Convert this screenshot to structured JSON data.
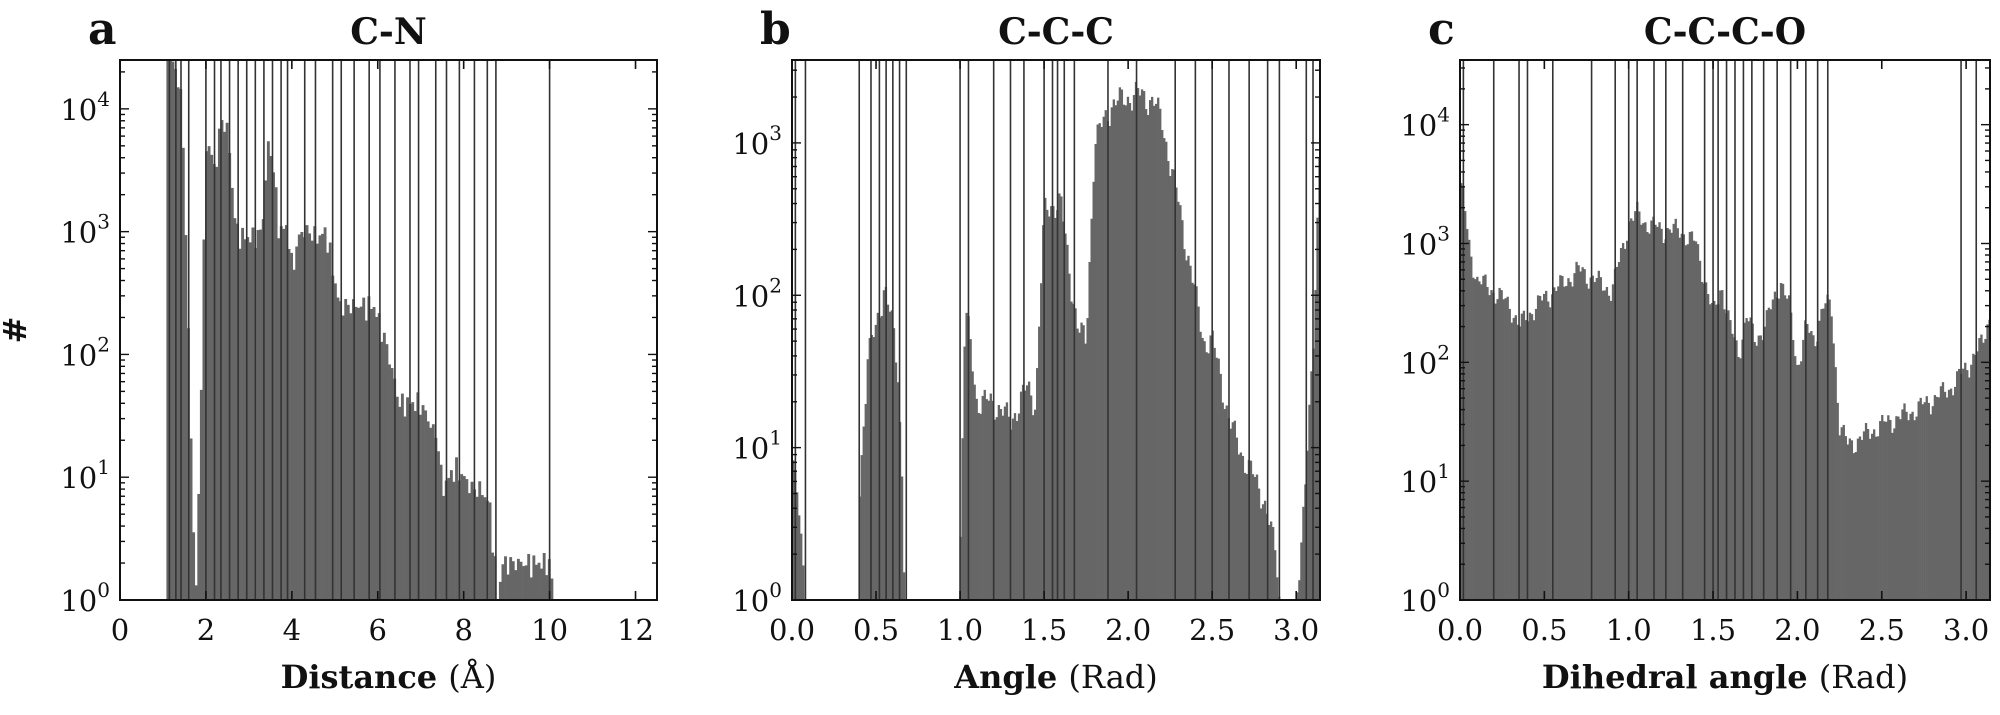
{
  "chart_data": [
    {
      "type": "bar",
      "panel": "a",
      "title": "C-N",
      "xlabel": "Distance",
      "xunit": "(Å)",
      "ylabel": "#",
      "yscale": "log",
      "xlim": [
        0,
        12.5
      ],
      "ylim": [
        1,
        25000
      ],
      "xticks": [
        0,
        2,
        4,
        6,
        8,
        10,
        12
      ],
      "xtick_labels": [
        "0",
        "2",
        "4",
        "6",
        "8",
        "10",
        "12"
      ],
      "yticks": [
        1,
        10,
        100,
        1000,
        10000
      ],
      "ytick_labels": [
        {
          "base": "10",
          "exp": "0"
        },
        {
          "base": "10",
          "exp": "1"
        },
        {
          "base": "10",
          "exp": "2"
        },
        {
          "base": "10",
          "exp": "3"
        },
        {
          "base": "10",
          "exp": "4"
        }
      ],
      "bin_width": 0.06,
      "profile_x": [
        1.1,
        1.2,
        1.3,
        1.4,
        1.5,
        1.6,
        1.7,
        1.75,
        1.8,
        2.0,
        2.1,
        2.2,
        2.35,
        2.5,
        2.7,
        2.9,
        3.1,
        3.3,
        3.45,
        3.55,
        3.7,
        3.9,
        4.0,
        4.2,
        4.4,
        4.6,
        4.8,
        5.1,
        5.3,
        5.6,
        5.9,
        6.0,
        6.2,
        6.5,
        6.8,
        7.0,
        7.4,
        7.5,
        7.8,
        8.0,
        8.2,
        8.4,
        8.6,
        8.8,
        8.9,
        9.2,
        9.6,
        10.0,
        10.1
      ],
      "profile_y": [
        30000,
        25000,
        20000,
        15000,
        3000,
        100,
        5,
        1,
        2,
        5000,
        5000,
        3000,
        8000,
        7000,
        1000,
        900,
        900,
        1000,
        5000,
        4000,
        1000,
        1100,
        500,
        1000,
        1000,
        900,
        1000,
        250,
        250,
        250,
        250,
        200,
        120,
        40,
        40,
        40,
        20,
        8,
        12,
        10,
        8,
        8,
        6,
        1,
        2,
        2,
        2,
        2,
        1
      ],
      "vlines": [
        1.15,
        1.3,
        1.42,
        1.6,
        2.0,
        2.2,
        2.35,
        2.55,
        2.75,
        2.95,
        3.15,
        3.35,
        3.55,
        3.75,
        3.9,
        4.3,
        4.55,
        4.95,
        5.15,
        5.45,
        5.8,
        6.05,
        6.4,
        6.75,
        6.95,
        7.35,
        7.6,
        7.9,
        8.25,
        8.55,
        8.75,
        10.0
      ]
    },
    {
      "type": "bar",
      "panel": "b",
      "title": "C-C-C",
      "xlabel": "Angle",
      "xunit": "(Rad)",
      "yscale": "log",
      "xlim": [
        0,
        3.14159
      ],
      "ylim": [
        1,
        3500
      ],
      "xticks": [
        0.0,
        0.5,
        1.0,
        1.5,
        2.0,
        2.5,
        3.0
      ],
      "xtick_labels": [
        "0.0",
        "0.5",
        "1.0",
        "1.5",
        "2.0",
        "2.5",
        "3.0"
      ],
      "yticks": [
        1,
        10,
        100,
        1000
      ],
      "ytick_labels": [
        {
          "base": "10",
          "exp": "0"
        },
        {
          "base": "10",
          "exp": "1"
        },
        {
          "base": "10",
          "exp": "2"
        },
        {
          "base": "10",
          "exp": "3"
        }
      ],
      "bin_width": 0.012,
      "profile_x": [
        0.0,
        0.03,
        0.06,
        0.09,
        0.1,
        0.39,
        0.4,
        0.45,
        0.5,
        0.55,
        0.6,
        0.63,
        0.66,
        0.67,
        0.99,
        1.0,
        1.03,
        1.06,
        1.1,
        1.2,
        1.3,
        1.4,
        1.45,
        1.5,
        1.55,
        1.6,
        1.65,
        1.7,
        1.75,
        1.8,
        1.9,
        2.0,
        2.05,
        2.1,
        2.15,
        2.2,
        2.3,
        2.4,
        2.45,
        2.5,
        2.55,
        2.6,
        2.7,
        2.8,
        2.88,
        2.9,
        2.95,
        3.0,
        3.05,
        3.1,
        3.14
      ],
      "profile_y": [
        8,
        5,
        2,
        1,
        1,
        1,
        5,
        40,
        60,
        120,
        60,
        30,
        5,
        1,
        1,
        2,
        80,
        50,
        20,
        20,
        15,
        25,
        20,
        350,
        400,
        400,
        150,
        60,
        50,
        1000,
        1800,
        2000,
        2100,
        2000,
        1900,
        1400,
        400,
        100,
        50,
        50,
        30,
        15,
        8,
        5,
        2,
        1,
        1,
        1,
        5,
        40,
        1000
      ],
      "vlines": [
        0.02,
        0.08,
        0.4,
        0.47,
        0.52,
        0.56,
        0.6,
        0.64,
        0.68,
        1.0,
        1.05,
        1.2,
        1.3,
        1.38,
        1.5,
        1.55,
        1.58,
        1.62,
        1.68,
        1.88,
        2.05,
        2.28,
        2.4,
        2.5,
        2.6,
        2.72,
        2.83,
        2.9,
        3.06,
        3.1
      ]
    },
    {
      "type": "bar",
      "panel": "c",
      "title": "C-C-C-O",
      "xlabel": "Dihedral angle",
      "xunit": "(Rad)",
      "yscale": "log",
      "xlim": [
        0,
        3.14159
      ],
      "ylim": [
        1,
        35000
      ],
      "xticks": [
        0.0,
        0.5,
        1.0,
        1.5,
        2.0,
        2.5,
        3.0
      ],
      "xtick_labels": [
        "0.0",
        "0.5",
        "1.0",
        "1.5",
        "2.0",
        "2.5",
        "3.0"
      ],
      "yticks": [
        1,
        10,
        100,
        1000,
        10000
      ],
      "ytick_labels": [
        {
          "base": "10",
          "exp": "0"
        },
        {
          "base": "10",
          "exp": "1"
        },
        {
          "base": "10",
          "exp": "2"
        },
        {
          "base": "10",
          "exp": "3"
        },
        {
          "base": "10",
          "exp": "4"
        }
      ],
      "bin_width": 0.012,
      "profile_x": [
        0.0,
        0.02,
        0.05,
        0.1,
        0.2,
        0.3,
        0.35,
        0.4,
        0.5,
        0.6,
        0.7,
        0.8,
        0.9,
        1.0,
        1.05,
        1.1,
        1.2,
        1.3,
        1.4,
        1.5,
        1.55,
        1.6,
        1.65,
        1.7,
        1.75,
        1.8,
        1.85,
        1.9,
        1.95,
        2.0,
        2.05,
        2.1,
        2.15,
        2.2,
        2.25,
        2.3,
        2.5,
        2.7,
        2.9,
        3.0,
        3.1,
        3.14
      ],
      "profile_y": [
        3000,
        2500,
        1000,
        500,
        400,
        300,
        200,
        250,
        350,
        450,
        600,
        500,
        400,
        1500,
        1800,
        1500,
        1300,
        1300,
        1000,
        250,
        450,
        200,
        120,
        250,
        150,
        200,
        300,
        500,
        300,
        90,
        200,
        150,
        300,
        300,
        30,
        20,
        30,
        40,
        60,
        90,
        150,
        250
      ],
      "vlines": [
        0.02,
        0.2,
        0.35,
        0.4,
        0.55,
        0.78,
        0.92,
        1.0,
        1.05,
        1.15,
        1.22,
        1.32,
        1.45,
        1.5,
        1.53,
        1.58,
        1.63,
        1.68,
        1.73,
        1.8,
        1.88,
        1.96,
        2.05,
        2.12,
        2.18,
        2.97,
        3.06
      ]
    }
  ]
}
